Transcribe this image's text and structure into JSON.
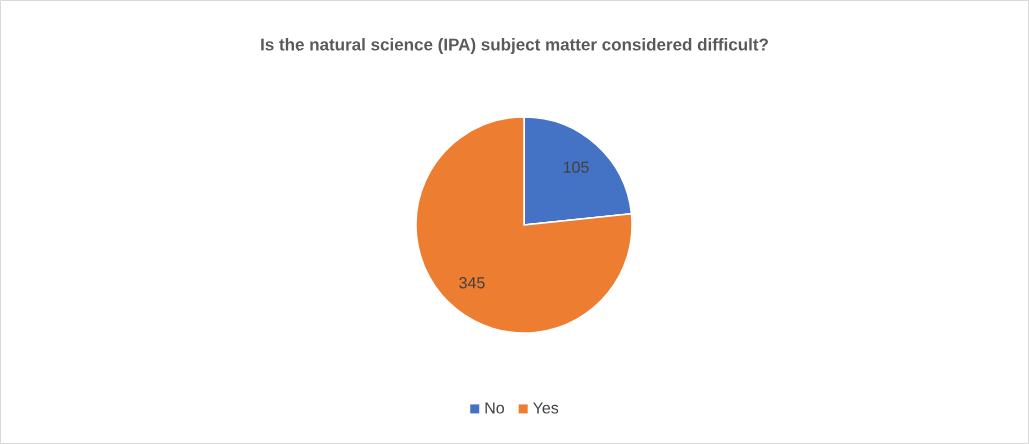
{
  "chart_data": {
    "type": "pie",
    "title": "Is the natural science (IPA) subject matter considered difficult?",
    "categories": [
      "No",
      "Yes"
    ],
    "values": [
      105,
      345
    ],
    "colors": [
      "#4472c4",
      "#ed7d31"
    ],
    "value_labels": [
      "105",
      "345"
    ],
    "legend": "bottom"
  }
}
